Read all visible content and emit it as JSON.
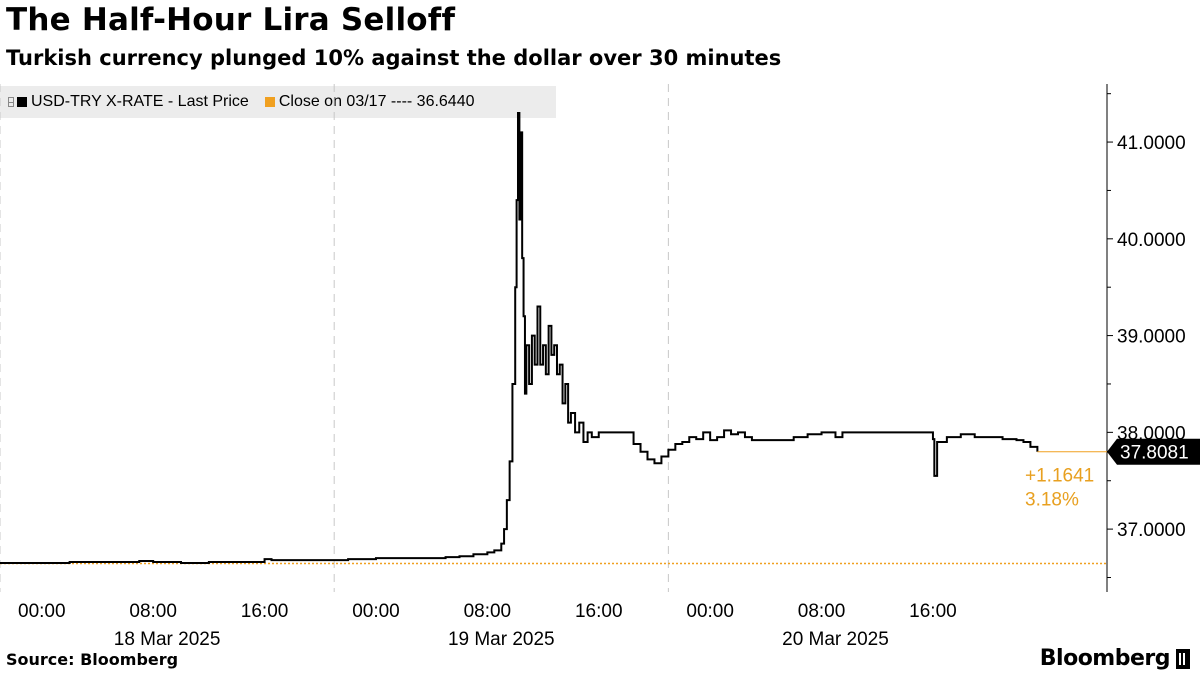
{
  "chart_data": {
    "type": "line",
    "title": "The Half-Hour Lira Selloff",
    "subtitle": "Turkish currency plunged 10% against the dollar over 30 minutes",
    "source": "Source: Bloomberg",
    "brand": "Bloomberg",
    "legend": [
      {
        "label": "USD-TRY X-RATE - Last Price",
        "color": "#000000"
      },
      {
        "label": "Close on 03/17 ---- 36.6440",
        "color": "#f0a020"
      }
    ],
    "reference_line": {
      "value": 36.644,
      "color": "#f0a020"
    },
    "last_value_label": "37.8081",
    "change_label": "+1.1641",
    "change_pct_label": "3.18%",
    "x_axis": {
      "hour_ticks": [
        {
          "t": 0,
          "label": "00:00"
        },
        {
          "t": 8,
          "label": "08:00"
        },
        {
          "t": 16,
          "label": "16:00"
        },
        {
          "t": 24,
          "label": "00:00"
        },
        {
          "t": 32,
          "label": "08:00"
        },
        {
          "t": 40,
          "label": "16:00"
        },
        {
          "t": 48,
          "label": "00:00"
        },
        {
          "t": 56,
          "label": "08:00"
        },
        {
          "t": 64,
          "label": "16:00"
        }
      ],
      "day_labels": [
        {
          "t": 9,
          "label": "18 Mar 2025"
        },
        {
          "t": 33,
          "label": "19 Mar 2025"
        },
        {
          "t": 57,
          "label": "20 Mar 2025"
        }
      ],
      "day_dividers": [
        -3,
        21,
        45
      ],
      "range": [
        -3,
        76.5
      ],
      "unit": "hours since 18 Mar 2025 00:00"
    },
    "y_axis": {
      "ticks": [
        37,
        38,
        39,
        40,
        41
      ],
      "tick_labels": [
        "37.0000",
        "38.0000",
        "39.0000",
        "40.0000",
        "41.0000"
      ],
      "range": [
        36.35,
        41.6
      ],
      "gridlines": false
    },
    "series": [
      {
        "name": "USD-TRY X-RATE - Last Price",
        "color": "#000000",
        "points": [
          [
            -3,
            36.65
          ],
          [
            0,
            36.65
          ],
          [
            2,
            36.66
          ],
          [
            4,
            36.66
          ],
          [
            6,
            36.66
          ],
          [
            7,
            36.67
          ],
          [
            8,
            36.66
          ],
          [
            10,
            36.65
          ],
          [
            12,
            36.66
          ],
          [
            14,
            36.66
          ],
          [
            15.8,
            36.66
          ],
          [
            16,
            36.69
          ],
          [
            16.5,
            36.68
          ],
          [
            18,
            36.68
          ],
          [
            20,
            36.68
          ],
          [
            22,
            36.69
          ],
          [
            24,
            36.7
          ],
          [
            26,
            36.7
          ],
          [
            28,
            36.7
          ],
          [
            29,
            36.71
          ],
          [
            30,
            36.72
          ],
          [
            31,
            36.74
          ],
          [
            32,
            36.76
          ],
          [
            32.5,
            36.78
          ],
          [
            33,
            36.85
          ],
          [
            33.2,
            37.0
          ],
          [
            33.4,
            37.3
          ],
          [
            33.6,
            37.7
          ],
          [
            33.8,
            38.5
          ],
          [
            34.0,
            39.5
          ],
          [
            34.1,
            40.4
          ],
          [
            34.2,
            41.3
          ],
          [
            34.3,
            40.2
          ],
          [
            34.4,
            41.1
          ],
          [
            34.5,
            39.8
          ],
          [
            34.6,
            39.2
          ],
          [
            34.7,
            38.4
          ],
          [
            34.8,
            38.9
          ],
          [
            35.0,
            38.5
          ],
          [
            35.2,
            39.0
          ],
          [
            35.4,
            38.7
          ],
          [
            35.6,
            39.3
          ],
          [
            35.8,
            38.7
          ],
          [
            36.0,
            38.9
          ],
          [
            36.2,
            38.6
          ],
          [
            36.4,
            39.1
          ],
          [
            36.6,
            38.8
          ],
          [
            36.8,
            38.9
          ],
          [
            37.0,
            38.6
          ],
          [
            37.2,
            38.7
          ],
          [
            37.4,
            38.3
          ],
          [
            37.6,
            38.5
          ],
          [
            37.8,
            38.1
          ],
          [
            38.0,
            38.2
          ],
          [
            38.3,
            38.0
          ],
          [
            38.6,
            38.1
          ],
          [
            38.9,
            37.9
          ],
          [
            39.2,
            38.0
          ],
          [
            39.5,
            37.95
          ],
          [
            40,
            38.0
          ],
          [
            41,
            38.0
          ],
          [
            42,
            38.0
          ],
          [
            42.5,
            37.88
          ],
          [
            43,
            37.8
          ],
          [
            43.5,
            37.72
          ],
          [
            44,
            37.68
          ],
          [
            44.5,
            37.75
          ],
          [
            45,
            37.82
          ],
          [
            45.5,
            37.88
          ],
          [
            46,
            37.9
          ],
          [
            46.5,
            37.95
          ],
          [
            47,
            37.93
          ],
          [
            47.5,
            38.0
          ],
          [
            48,
            37.92
          ],
          [
            48.5,
            37.95
          ],
          [
            49,
            38.02
          ],
          [
            49.5,
            37.98
          ],
          [
            50,
            38.0
          ],
          [
            50.5,
            37.95
          ],
          [
            51,
            37.92
          ],
          [
            52,
            37.92
          ],
          [
            53,
            37.92
          ],
          [
            54,
            37.95
          ],
          [
            55,
            37.98
          ],
          [
            56,
            38.0
          ],
          [
            56.5,
            38.0
          ],
          [
            57,
            37.95
          ],
          [
            57.5,
            38.0
          ],
          [
            58,
            38.0
          ],
          [
            60,
            38.0
          ],
          [
            62,
            38.0
          ],
          [
            63.5,
            38.0
          ],
          [
            64,
            37.93
          ],
          [
            64.1,
            37.55
          ],
          [
            64.3,
            37.9
          ],
          [
            65,
            37.95
          ],
          [
            66,
            37.98
          ],
          [
            67,
            37.95
          ],
          [
            68,
            37.95
          ],
          [
            69,
            37.93
          ],
          [
            70,
            37.92
          ],
          [
            70.5,
            37.9
          ],
          [
            71,
            37.85
          ],
          [
            71.5,
            37.8
          ]
        ]
      }
    ]
  }
}
